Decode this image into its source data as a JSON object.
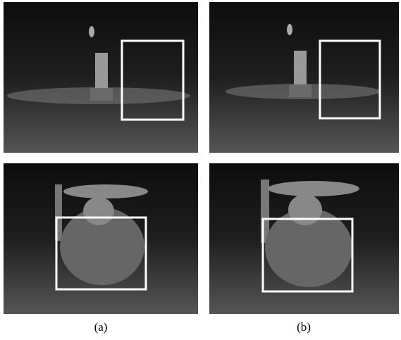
{
  "figure": {
    "labels": [
      "(a)",
      "(b)"
    ]
  }
}
